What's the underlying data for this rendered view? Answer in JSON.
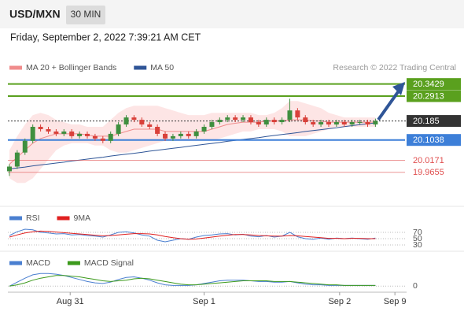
{
  "header": {
    "symbol": "USD/MXN",
    "interval": "30 MIN",
    "timestamp": "Friday, September 2, 2022 7:39:21 AM CET"
  },
  "chart_data": [
    {
      "type": "candlestick",
      "credit": "Research © 2022 Trading Central",
      "up_color": "#3f8f3f",
      "down_color": "#d9403a",
      "xlim": [
        -0.2,
        51
      ],
      "ylim": [
        19.82,
        20.5
      ],
      "open": [
        19.97,
        19.99,
        20.05,
        20.1,
        20.16,
        20.15,
        20.14,
        20.13,
        20.14,
        20.12,
        20.13,
        20.12,
        20.11,
        20.1,
        20.13,
        20.17,
        20.2,
        20.19,
        20.17,
        20.16,
        20.13,
        20.11,
        20.12,
        20.13,
        20.12,
        20.14,
        20.16,
        20.18,
        20.19,
        20.2,
        20.19,
        20.2,
        20.18,
        20.17,
        20.19,
        20.18,
        20.19,
        20.23,
        20.2,
        20.18,
        20.17,
        20.18,
        20.17,
        20.18,
        20.17,
        20.18,
        20.18,
        20.17
      ],
      "high": [
        20.0,
        20.06,
        20.11,
        20.17,
        20.17,
        20.16,
        20.15,
        20.15,
        20.15,
        20.14,
        20.14,
        20.13,
        20.12,
        20.14,
        20.18,
        20.21,
        20.21,
        20.2,
        20.18,
        20.17,
        20.14,
        20.13,
        20.14,
        20.14,
        20.15,
        20.17,
        20.19,
        20.2,
        20.21,
        20.21,
        20.21,
        20.21,
        20.19,
        20.2,
        20.2,
        20.2,
        20.28,
        20.24,
        20.21,
        20.19,
        20.19,
        20.19,
        20.19,
        20.19,
        20.19,
        20.19,
        20.19,
        20.195
      ],
      "low": [
        19.95,
        19.98,
        20.04,
        20.09,
        20.14,
        20.13,
        20.12,
        20.12,
        20.11,
        20.11,
        20.11,
        20.1,
        20.09,
        20.09,
        20.12,
        20.16,
        20.18,
        20.16,
        20.15,
        20.12,
        20.1,
        20.1,
        20.11,
        20.11,
        20.11,
        20.13,
        20.15,
        20.17,
        20.18,
        20.18,
        20.18,
        20.17,
        20.16,
        20.16,
        20.17,
        20.17,
        20.18,
        20.19,
        20.17,
        20.16,
        20.16,
        20.16,
        20.16,
        20.16,
        20.16,
        20.17,
        20.16,
        20.16
      ],
      "close": [
        19.99,
        20.05,
        20.1,
        20.16,
        20.15,
        20.14,
        20.13,
        20.14,
        20.12,
        20.13,
        20.12,
        20.11,
        20.1,
        20.13,
        20.17,
        20.2,
        20.19,
        20.17,
        20.16,
        20.13,
        20.11,
        20.12,
        20.13,
        20.12,
        20.14,
        20.16,
        20.18,
        20.19,
        20.2,
        20.19,
        20.2,
        20.18,
        20.17,
        20.19,
        20.18,
        20.19,
        20.23,
        20.2,
        20.18,
        20.17,
        20.18,
        20.17,
        20.18,
        20.17,
        20.18,
        20.18,
        20.17,
        20.185
      ],
      "series": [
        {
          "name": "MA 20 + Bollinger Bands",
          "color": "#f08c8c",
          "band_color": "#fde0e0",
          "values": [
            20.0,
            20.03,
            20.06,
            20.09,
            20.11,
            20.12,
            20.13,
            20.13,
            20.13,
            20.13,
            20.125,
            20.12,
            20.12,
            20.12,
            20.13,
            20.14,
            20.15,
            20.15,
            20.15,
            20.15,
            20.14,
            20.14,
            20.14,
            20.14,
            20.14,
            20.14,
            20.15,
            20.16,
            20.17,
            20.175,
            20.18,
            20.18,
            20.18,
            20.185,
            20.185,
            20.185,
            20.19,
            20.19,
            20.19,
            20.185,
            20.185,
            20.18,
            20.18,
            20.18,
            20.18,
            20.18,
            20.18,
            20.18
          ],
          "upper": [
            20.06,
            20.12,
            20.17,
            20.21,
            20.22,
            20.21,
            20.19,
            20.18,
            20.17,
            20.17,
            20.16,
            20.16,
            20.16,
            20.19,
            20.22,
            20.24,
            20.25,
            20.25,
            20.25,
            20.25,
            20.24,
            20.23,
            20.22,
            20.21,
            20.21,
            20.21,
            20.22,
            20.22,
            20.22,
            20.22,
            20.22,
            20.22,
            20.21,
            20.21,
            20.22,
            20.24,
            20.27,
            20.27,
            20.26,
            20.25,
            20.24,
            20.22,
            20.21,
            20.2,
            20.2,
            20.2,
            20.2,
            20.2
          ],
          "lower": [
            19.94,
            19.92,
            19.92,
            19.94,
            19.98,
            20.02,
            20.06,
            20.08,
            20.09,
            20.09,
            20.09,
            20.08,
            20.08,
            20.06,
            20.05,
            20.05,
            20.06,
            20.07,
            20.08,
            20.09,
            20.1,
            20.1,
            20.1,
            20.1,
            20.1,
            20.1,
            20.1,
            20.11,
            20.12,
            20.13,
            20.14,
            20.14,
            20.15,
            20.15,
            20.15,
            20.14,
            20.12,
            20.12,
            20.12,
            20.13,
            20.14,
            20.15,
            20.16,
            20.16,
            20.16,
            20.16,
            20.16,
            20.16
          ]
        },
        {
          "name": "MA 50",
          "color": "#2f5597",
          "values": [
            19.98,
            19.984,
            19.988,
            19.993,
            19.997,
            20.001,
            20.005,
            20.009,
            20.014,
            20.018,
            20.022,
            20.026,
            20.03,
            20.035,
            20.039,
            20.043,
            20.047,
            20.051,
            20.056,
            20.06,
            20.064,
            20.068,
            20.072,
            20.077,
            20.081,
            20.085,
            20.089,
            20.093,
            20.098,
            20.102,
            20.106,
            20.11,
            20.114,
            20.119,
            20.123,
            20.127,
            20.131,
            20.135,
            20.14,
            20.144,
            20.148,
            20.152,
            20.156,
            20.161,
            20.165,
            20.169,
            20.173,
            20.177
          ]
        }
      ],
      "levels": [
        {
          "value": 20.3429,
          "color": "#5aa01e",
          "boxed": true
        },
        {
          "value": 20.2913,
          "color": "#5aa01e",
          "boxed": true
        },
        {
          "value": 20.185,
          "color": "#333333",
          "boxed": true,
          "dotted": true
        },
        {
          "value": 20.1038,
          "color": "#3d7fd8",
          "boxed": true
        },
        {
          "value": 20.0171,
          "color": "#e05050",
          "boxed": false
        },
        {
          "value": 19.9655,
          "color": "#e05050",
          "boxed": false
        }
      ]
    },
    {
      "type": "line",
      "xlim": [
        -0.2,
        51
      ],
      "ylim": [
        10,
        105
      ],
      "yticks": [
        70,
        50,
        30
      ],
      "series": [
        {
          "name": "RSI",
          "color": "#4a7fd0",
          "values": [
            60,
            72,
            80,
            78,
            70,
            68,
            65,
            66,
            62,
            63,
            60,
            58,
            55,
            62,
            70,
            72,
            68,
            62,
            58,
            45,
            40,
            45,
            50,
            48,
            55,
            60,
            62,
            65,
            66,
            62,
            64,
            58,
            56,
            60,
            55,
            58,
            70,
            56,
            50,
            48,
            52,
            48,
            52,
            50,
            52,
            50,
            48,
            52
          ]
        },
        {
          "name": "9MA",
          "color": "#e02020",
          "values": [
            55,
            62,
            68,
            72,
            74,
            73,
            71,
            69,
            67,
            65,
            63,
            61,
            59,
            60,
            62,
            64,
            66,
            66,
            65,
            62,
            57,
            53,
            50,
            48,
            49,
            52,
            55,
            58,
            61,
            63,
            63,
            62,
            60,
            59,
            58,
            58,
            60,
            59,
            57,
            55,
            53,
            51,
            51,
            50,
            51,
            51,
            50,
            50
          ]
        }
      ]
    },
    {
      "type": "line",
      "xlim": [
        -0.2,
        51
      ],
      "ylim": [
        -0.008,
        0.03
      ],
      "yticks": [
        0
      ],
      "xticks": [
        {
          "value": 7.8,
          "label": "Aug 31"
        },
        {
          "value": 25,
          "label": "Sep 1"
        },
        {
          "value": 42.4,
          "label": "Sep 2"
        },
        {
          "value": 49.5,
          "label": "Sep 9"
        }
      ],
      "series": [
        {
          "name": "MACD",
          "color": "#4a7fd0",
          "values": [
            0,
            0.006,
            0.012,
            0.017,
            0.019,
            0.019,
            0.018,
            0.016,
            0.013,
            0.01,
            0.007,
            0.005,
            0.004,
            0.006,
            0.01,
            0.013,
            0.014,
            0.012,
            0.009,
            0.005,
            0.002,
            0.001,
            0.001,
            0.001,
            0.002,
            0.004,
            0.006,
            0.008,
            0.009,
            0.009,
            0.009,
            0.008,
            0.007,
            0.007,
            0.006,
            0.006,
            0.007,
            0.005,
            0.003,
            0.002,
            0.002,
            0.001,
            0.001,
            0.001,
            0.001,
            0.001,
            0.001,
            0.001
          ]
        },
        {
          "name": "MACD Signal",
          "color": "#3c9a1c",
          "values": [
            0,
            0.002,
            0.005,
            0.009,
            0.012,
            0.014,
            0.016,
            0.016,
            0.015,
            0.014,
            0.012,
            0.01,
            0.008,
            0.007,
            0.008,
            0.009,
            0.011,
            0.012,
            0.011,
            0.009,
            0.007,
            0.005,
            0.003,
            0.002,
            0.002,
            0.003,
            0.004,
            0.005,
            0.006,
            0.007,
            0.008,
            0.008,
            0.008,
            0.008,
            0.007,
            0.007,
            0.007,
            0.006,
            0.005,
            0.004,
            0.003,
            0.002,
            0.002,
            0.001,
            0.001,
            0.001,
            0.001,
            0.001
          ]
        }
      ]
    }
  ]
}
